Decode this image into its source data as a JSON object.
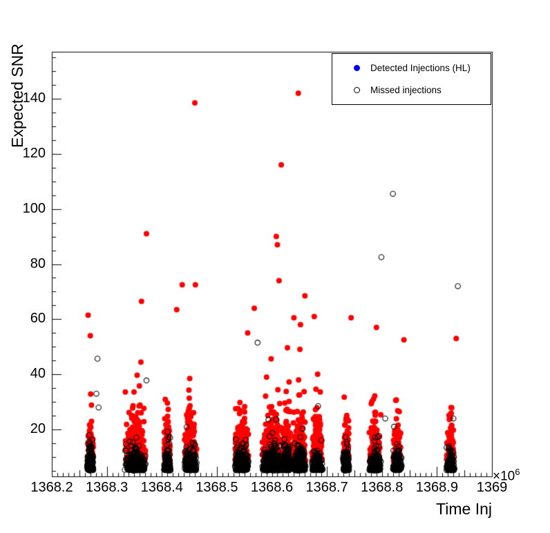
{
  "figure": {
    "background": "#ffffff",
    "frame_color": "#000000"
  },
  "chart_data": {
    "type": "scatter",
    "title": "",
    "xlabel": "Time Inj",
    "ylabel": "Expected SNR",
    "x_axis_multiplier_label": "×10",
    "x_axis_multiplier_exponent": "6",
    "xlim": [
      1368.2,
      1369.0
    ],
    "ylim": [
      3,
      157
    ],
    "x_major_tick_step": 0.1,
    "x_medium_tick_step": 0.05,
    "x_minor_tick_step": 0.01,
    "y_major_tick_step": 20,
    "y_minor_tick_step": 5,
    "grid": false,
    "x_ticks": [
      {
        "value": 1368.2,
        "label": "1368.2"
      },
      {
        "value": 1368.3,
        "label": "1368.3"
      },
      {
        "value": 1368.4,
        "label": "1368.4"
      },
      {
        "value": 1368.5,
        "label": "1368.5"
      },
      {
        "value": 1368.6,
        "label": "1368.6"
      },
      {
        "value": 1368.7,
        "label": "1368.7"
      },
      {
        "value": 1368.8,
        "label": "1368.8"
      },
      {
        "value": 1368.9,
        "label": "1368.9"
      },
      {
        "value": 1369.0,
        "label": "1369"
      }
    ],
    "y_ticks": [
      {
        "value": 20,
        "label": "20"
      },
      {
        "value": 40,
        "label": "40"
      },
      {
        "value": 60,
        "label": "60"
      },
      {
        "value": 80,
        "label": "80"
      },
      {
        "value": 100,
        "label": "100"
      },
      {
        "value": 120,
        "label": "120"
      },
      {
        "value": 140,
        "label": "140"
      }
    ],
    "legend": {
      "position": "top-right",
      "entries": [
        {
          "label": "Detected Injections (HL)",
          "marker": "filled-circle",
          "color": "#0000ff"
        },
        {
          "label": "Missed injections",
          "marker": "open-circle",
          "color": "#000000"
        }
      ]
    },
    "random_seed": 1337,
    "marker_radius_px": 4,
    "series": [
      {
        "name": "Detected Injections (HL)",
        "marker": "filled-circle",
        "color": "#ff0000",
        "snr_min": 8.5,
        "snr_scale": 5.5,
        "clusters": [
          {
            "x": 1368.27,
            "spread": 0.006,
            "n": 130,
            "max": 38
          },
          {
            "x": 1368.352,
            "spread": 0.02,
            "n": 300,
            "max": 50
          },
          {
            "x": 1368.41,
            "spread": 0.006,
            "n": 140,
            "max": 48
          },
          {
            "x": 1368.452,
            "spread": 0.012,
            "n": 180,
            "max": 45
          },
          {
            "x": 1368.545,
            "spread": 0.013,
            "n": 220,
            "max": 48
          },
          {
            "x": 1368.6,
            "spread": 0.018,
            "n": 320,
            "max": 55
          },
          {
            "x": 1368.627,
            "spread": 0.008,
            "n": 180,
            "max": 50
          },
          {
            "x": 1368.65,
            "spread": 0.012,
            "n": 240,
            "max": 50
          },
          {
            "x": 1368.682,
            "spread": 0.01,
            "n": 140,
            "max": 47
          },
          {
            "x": 1368.735,
            "spread": 0.006,
            "n": 90,
            "max": 42
          },
          {
            "x": 1368.788,
            "spread": 0.011,
            "n": 130,
            "max": 44
          },
          {
            "x": 1368.828,
            "spread": 0.008,
            "n": 100,
            "max": 38
          },
          {
            "x": 1368.925,
            "spread": 0.008,
            "n": 80,
            "max": 37
          }
        ],
        "outlier_points": [
          [
            1368.266,
            61.5
          ],
          [
            1368.27,
            54
          ],
          [
            1368.363,
            66.5
          ],
          [
            1368.372,
            91
          ],
          [
            1368.427,
            63.5
          ],
          [
            1368.437,
            72.5
          ],
          [
            1368.46,
            138.5
          ],
          [
            1368.461,
            72.5
          ],
          [
            1368.556,
            55
          ],
          [
            1368.568,
            64
          ],
          [
            1368.608,
            90
          ],
          [
            1368.61,
            87
          ],
          [
            1368.613,
            74
          ],
          [
            1368.617,
            116
          ],
          [
            1368.64,
            60.5
          ],
          [
            1368.648,
            142
          ],
          [
            1368.652,
            58
          ],
          [
            1368.66,
            68.5
          ],
          [
            1368.677,
            61
          ],
          [
            1368.744,
            60.5
          ],
          [
            1368.79,
            57
          ],
          [
            1368.84,
            52.5
          ],
          [
            1368.935,
            53
          ]
        ]
      },
      {
        "name": "Missed injections",
        "marker": "open-circle",
        "color": "#000000",
        "snr_min": 5.2,
        "snr_scale": 2.2,
        "clusters": [
          {
            "x": 1368.27,
            "spread": 0.006,
            "n": 260,
            "max": 25
          },
          {
            "x": 1368.352,
            "spread": 0.02,
            "n": 420,
            "max": 25
          },
          {
            "x": 1368.41,
            "spread": 0.006,
            "n": 240,
            "max": 25
          },
          {
            "x": 1368.452,
            "spread": 0.012,
            "n": 300,
            "max": 25
          },
          {
            "x": 1368.545,
            "spread": 0.013,
            "n": 320,
            "max": 25
          },
          {
            "x": 1368.6,
            "spread": 0.018,
            "n": 450,
            "max": 25
          },
          {
            "x": 1368.627,
            "spread": 0.008,
            "n": 280,
            "max": 25
          },
          {
            "x": 1368.65,
            "spread": 0.012,
            "n": 340,
            "max": 25
          },
          {
            "x": 1368.682,
            "spread": 0.01,
            "n": 220,
            "max": 25
          },
          {
            "x": 1368.735,
            "spread": 0.006,
            "n": 170,
            "max": 25
          },
          {
            "x": 1368.788,
            "spread": 0.011,
            "n": 260,
            "max": 25
          },
          {
            "x": 1368.828,
            "spread": 0.008,
            "n": 200,
            "max": 25
          },
          {
            "x": 1368.925,
            "spread": 0.008,
            "n": 150,
            "max": 25
          }
        ],
        "outlier_points": [
          [
            1368.281,
            33
          ],
          [
            1368.283,
            45.7
          ],
          [
            1368.285,
            28
          ],
          [
            1368.372,
            37.8
          ],
          [
            1368.574,
            51.5
          ],
          [
            1368.684,
            28.5
          ],
          [
            1368.799,
            82.5
          ],
          [
            1368.806,
            24
          ],
          [
            1368.82,
            105.5
          ],
          [
            1368.822,
            21
          ],
          [
            1368.93,
            24
          ],
          [
            1368.938,
            72
          ]
        ]
      }
    ]
  }
}
